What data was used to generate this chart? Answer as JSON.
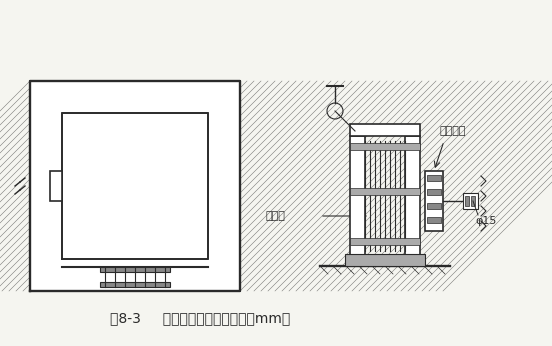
{
  "bg_color": "#f5f5f0",
  "line_color": "#2a2a2a",
  "hatch_color": "#2a2a2a",
  "caption_text": "图8-3     电梯井口防护门（单位：mm）",
  "label_pengzhang": "膨胀螺栓",
  "label_fanghu": "筱棚门",
  "label_phi": "φ15",
  "figsize": [
    5.52,
    3.46
  ],
  "dpi": 100
}
